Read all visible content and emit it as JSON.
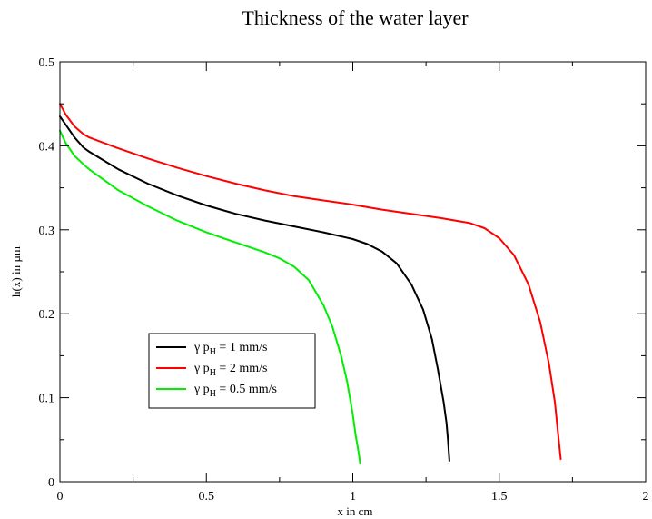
{
  "chart_data": {
    "type": "line",
    "title": "Thickness of the water layer",
    "xlabel": "x in  cm",
    "ylabel": "h(x) in  µm",
    "xlim": [
      0,
      2
    ],
    "ylim": [
      0,
      0.5
    ],
    "x_ticks": [
      "0",
      "0.5",
      "1",
      "1.5",
      "2"
    ],
    "y_ticks": [
      "0",
      "0.1",
      "0.2",
      "0.3",
      "0.4",
      "0.5"
    ],
    "grid": false,
    "legend_position": "lower-left",
    "series": [
      {
        "name": "γ  p_H = 1 mm/s",
        "legend_prefix": "γ  p",
        "legend_sub": "H",
        "legend_suffix": " = 1 mm/s",
        "color": "#000000",
        "x": [
          0,
          0.02,
          0.05,
          0.08,
          0.1,
          0.2,
          0.3,
          0.4,
          0.5,
          0.6,
          0.7,
          0.8,
          0.9,
          1.0,
          1.05,
          1.1,
          1.15,
          1.2,
          1.24,
          1.27,
          1.29,
          1.31,
          1.32,
          1.325,
          1.33
        ],
        "y": [
          0.435,
          0.425,
          0.41,
          0.398,
          0.393,
          0.372,
          0.355,
          0.341,
          0.329,
          0.319,
          0.311,
          0.304,
          0.297,
          0.289,
          0.283,
          0.274,
          0.26,
          0.235,
          0.205,
          0.17,
          0.135,
          0.095,
          0.07,
          0.05,
          0.025
        ]
      },
      {
        "name": "γ  p_H = 2 mm/s",
        "legend_prefix": "γ  p",
        "legend_sub": "H",
        "legend_suffix": " = 2 mm/s",
        "color": "#ff0000",
        "x": [
          0,
          0.02,
          0.05,
          0.08,
          0.1,
          0.2,
          0.3,
          0.4,
          0.5,
          0.6,
          0.7,
          0.8,
          0.9,
          1.0,
          1.1,
          1.2,
          1.3,
          1.4,
          1.45,
          1.5,
          1.55,
          1.6,
          1.64,
          1.67,
          1.69,
          1.7,
          1.71
        ],
        "y": [
          0.45,
          0.437,
          0.423,
          0.414,
          0.41,
          0.397,
          0.385,
          0.374,
          0.364,
          0.355,
          0.347,
          0.34,
          0.335,
          0.33,
          0.324,
          0.319,
          0.314,
          0.308,
          0.302,
          0.29,
          0.27,
          0.235,
          0.19,
          0.14,
          0.095,
          0.06,
          0.027
        ]
      },
      {
        "name": "γ  p_H = 0.5 mm/s",
        "legend_prefix": "γ  p",
        "legend_sub": "H",
        "legend_suffix": " = 0.5 mm/s",
        "color": "#00ee00",
        "x": [
          0,
          0.02,
          0.05,
          0.08,
          0.1,
          0.2,
          0.3,
          0.4,
          0.5,
          0.6,
          0.7,
          0.75,
          0.8,
          0.85,
          0.9,
          0.93,
          0.96,
          0.98,
          1.0,
          1.01,
          1.02,
          1.025
        ],
        "y": [
          0.418,
          0.403,
          0.388,
          0.378,
          0.372,
          0.347,
          0.328,
          0.311,
          0.297,
          0.285,
          0.273,
          0.266,
          0.256,
          0.24,
          0.21,
          0.185,
          0.15,
          0.12,
          0.08,
          0.055,
          0.035,
          0.022
        ]
      }
    ]
  }
}
